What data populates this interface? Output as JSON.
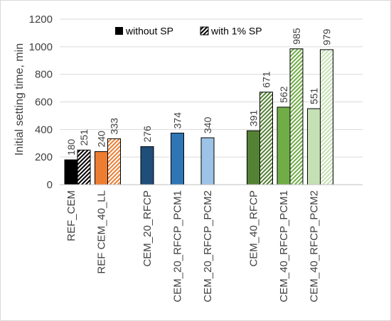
{
  "chart_data": {
    "type": "bar",
    "title": "",
    "xlabel": "",
    "ylabel": "Initial setting time, min",
    "ylim": [
      0,
      1200
    ],
    "yticks": [
      0,
      200,
      400,
      600,
      800,
      1000,
      1200
    ],
    "grid": "horizontal",
    "legend_position": "top",
    "series": [
      {
        "name": "without SP",
        "pattern": "solid"
      },
      {
        "name": "with 1% SP",
        "pattern": "diagonal-hatch"
      }
    ],
    "groups": [
      {
        "categories": [
          {
            "label": "REF_CEM",
            "color": "#000000",
            "without_sp": 180,
            "with_sp": 251
          },
          {
            "label": "REF CEM_40_LL",
            "color": "#ed7d31",
            "without_sp": 240,
            "with_sp": 333
          }
        ]
      },
      {
        "categories": [
          {
            "label": "CEM_20_RFCP",
            "color": "#1f4e79",
            "without_sp": 276,
            "with_sp": null
          },
          {
            "label": "CEM_20_RFCP_PCM1",
            "color": "#2e75b6",
            "without_sp": 374,
            "with_sp": null
          },
          {
            "label": "CEM_20_RFCP_PCM2",
            "color": "#9dc3e6",
            "without_sp": 340,
            "with_sp": null
          }
        ]
      },
      {
        "categories": [
          {
            "label": "CEM_40_RFCP",
            "color": "#548235",
            "without_sp": 391,
            "with_sp": 671
          },
          {
            "label": "CEM_40_RFCP_PCM1",
            "color": "#70ad47",
            "without_sp": 562,
            "with_sp": 985
          },
          {
            "label": "CEM_40_RFCP_PCM2",
            "color": "#c5e0b4",
            "without_sp": 551,
            "with_sp": 979
          }
        ]
      }
    ]
  }
}
